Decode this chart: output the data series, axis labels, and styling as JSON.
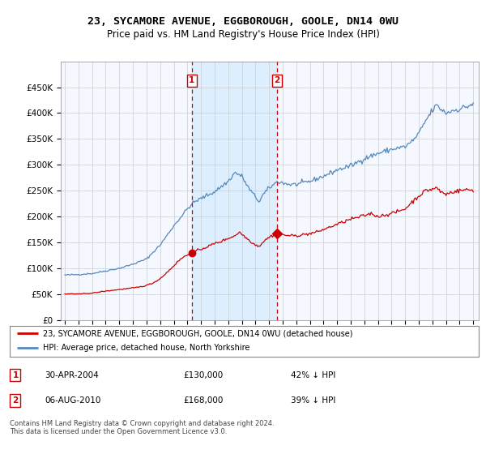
{
  "title": "23, SYCAMORE AVENUE, EGGBOROUGH, GOOLE, DN14 0WU",
  "subtitle": "Price paid vs. HM Land Registry's House Price Index (HPI)",
  "footer": "Contains HM Land Registry data © Crown copyright and database right 2024.\nThis data is licensed under the Open Government Licence v3.0.",
  "legend_line1": "23, SYCAMORE AVENUE, EGGBOROUGH, GOOLE, DN14 0WU (detached house)",
  "legend_line2": "HPI: Average price, detached house, North Yorkshire",
  "sale1_date": "30-APR-2004",
  "sale1_price": "£130,000",
  "sale1_hpi": "42% ↓ HPI",
  "sale2_date": "06-AUG-2010",
  "sale2_price": "£168,000",
  "sale2_hpi": "39% ↓ HPI",
  "red_color": "#cc0000",
  "blue_color": "#5588bb",
  "shade_color": "#ddeeff",
  "plot_bg": "#f5f8ff",
  "grid_color": "#cccccc",
  "ylim": [
    0,
    500000
  ],
  "ytick_vals": [
    0,
    50000,
    100000,
    150000,
    200000,
    250000,
    300000,
    350000,
    400000,
    450000
  ],
  "ytick_labels": [
    "£0",
    "£50K",
    "£100K",
    "£150K",
    "£200K",
    "£250K",
    "£300K",
    "£350K",
    "£400K",
    "£450K"
  ],
  "sale1_year": 2004.33,
  "sale2_year": 2010.583,
  "sale1_price_val": 130000,
  "sale2_price_val": 168000,
  "xmin": 1994.7,
  "xmax": 2025.4
}
